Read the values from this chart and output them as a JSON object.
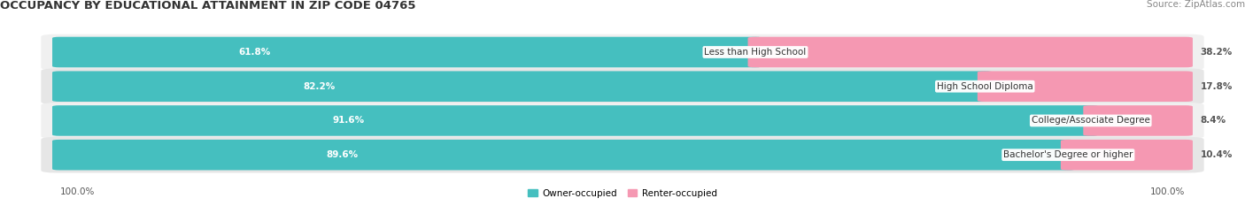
{
  "title": "OCCUPANCY BY EDUCATIONAL ATTAINMENT IN ZIP CODE 04765",
  "source": "Source: ZipAtlas.com",
  "categories": [
    "Less than High School",
    "High School Diploma",
    "College/Associate Degree",
    "Bachelor's Degree or higher"
  ],
  "owner_values": [
    61.8,
    82.2,
    91.6,
    89.6
  ],
  "renter_values": [
    38.2,
    17.8,
    8.4,
    10.4
  ],
  "owner_color": "#45bfbf",
  "renter_color": "#f598b2",
  "row_bg_colors": [
    "#f0f0f0",
    "#e6e6e6"
  ],
  "axis_label_left": "100.0%",
  "axis_label_right": "100.0%",
  "legend_owner": "Owner-occupied",
  "legend_renter": "Renter-occupied",
  "title_fontsize": 9.5,
  "source_fontsize": 7.5,
  "label_fontsize": 7.5,
  "bar_label_fontsize": 7.5,
  "cat_fontsize": 7.5,
  "background_color": "#ffffff"
}
